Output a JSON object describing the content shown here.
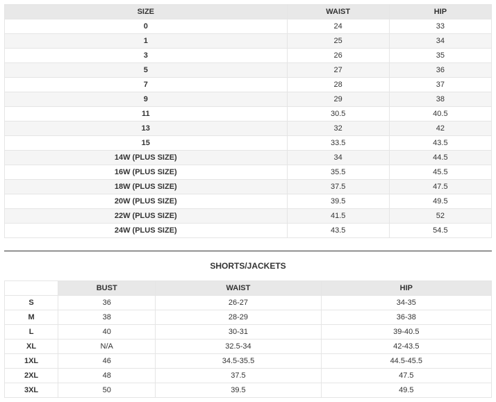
{
  "table1": {
    "headers": [
      "SIZE",
      "WAIST",
      "HIP"
    ],
    "rows": [
      [
        "0",
        "24",
        "33"
      ],
      [
        "1",
        "25",
        "34"
      ],
      [
        "3",
        "26",
        "35"
      ],
      [
        "5",
        "27",
        "36"
      ],
      [
        "7",
        "28",
        "37"
      ],
      [
        "9",
        "29",
        "38"
      ],
      [
        "11",
        "30.5",
        "40.5"
      ],
      [
        "13",
        "32",
        "42"
      ],
      [
        "15",
        "33.5",
        "43.5"
      ],
      [
        "14W (PLUS SIZE)",
        "34",
        "44.5"
      ],
      [
        "16W (PLUS SIZE)",
        "35.5",
        "45.5"
      ],
      [
        "18W (PLUS SIZE)",
        "37.5",
        "47.5"
      ],
      [
        "20W (PLUS SIZE)",
        "39.5",
        "49.5"
      ],
      [
        "22W (PLUS SIZE)",
        "41.5",
        "52"
      ],
      [
        "24W (PLUS SIZE)",
        "43.5",
        "54.5"
      ]
    ]
  },
  "section2": {
    "title": "SHORTS/JACKETS"
  },
  "table2": {
    "headers": [
      "",
      "BUST",
      "WAIST",
      "HIP"
    ],
    "rows": [
      [
        "S",
        "36",
        "26-27",
        "34-35"
      ],
      [
        "M",
        "38",
        "28-29",
        "36-38"
      ],
      [
        "L",
        "40",
        "30-31",
        "39-40.5"
      ],
      [
        "XL",
        "N/A",
        "32.5-34",
        "42-43.5"
      ],
      [
        "1XL",
        "46",
        "34.5-35.5",
        "44.5-45.5"
      ],
      [
        "2XL",
        "48",
        "37.5",
        "47.5"
      ],
      [
        "3XL",
        "50",
        "39.5",
        "49.5"
      ]
    ]
  }
}
